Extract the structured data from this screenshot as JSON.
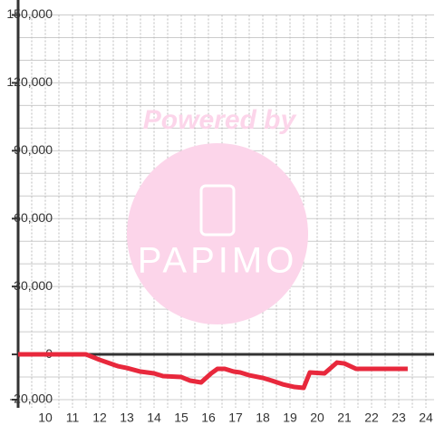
{
  "chart_data": {
    "type": "line",
    "watermark": {
      "top": "Powered by",
      "logo": "PAPIMO"
    },
    "x": [
      9,
      11.5,
      12,
      12.67,
      13,
      13.5,
      14,
      14.33,
      15,
      15.33,
      15.73,
      16.1,
      16.33,
      16.6,
      16.93,
      17.17,
      17.5,
      18,
      18.33,
      18.73,
      19.17,
      19.5,
      19.73,
      20.27,
      20.73,
      21,
      21.43,
      22,
      23.33
    ],
    "series": [
      {
        "color": "#e8283c",
        "values": [
          0,
          0,
          -2400,
          -5200,
          -6000,
          -7600,
          -8400,
          -9600,
          -10000,
          -11600,
          -12400,
          -8400,
          -6400,
          -6400,
          -7600,
          -8000,
          -9200,
          -10400,
          -11600,
          -13200,
          -14400,
          -14800,
          -8000,
          -8400,
          -3600,
          -4000,
          -6400,
          -6400,
          -6400
        ]
      }
    ],
    "xlim": [
      9,
      24.3
    ],
    "xticks": [
      10,
      11,
      12,
      13,
      14,
      15,
      16,
      17,
      18,
      19,
      20,
      21,
      22,
      23,
      24
    ],
    "xminorticks": [
      9.5,
      10.5,
      11.5,
      12.5,
      13.5,
      14.5,
      15.5,
      16.5,
      17.5,
      18.5,
      19.5,
      20.5,
      21.5,
      22.5,
      23.5
    ],
    "ylim": [
      -20000,
      150000
    ],
    "yticks": [
      {
        "value": -20000,
        "label": "-20,000"
      },
      0,
      {
        "value": 30000,
        "label": "30,000"
      },
      {
        "value": 60000,
        "label": "60,000"
      },
      {
        "value": 90000,
        "label": "90,000"
      },
      {
        "value": 120000,
        "label": "120,000"
      },
      {
        "value": 150000,
        "label": "150,000"
      }
    ],
    "yminorticks": [
      -10000,
      10000,
      20000,
      40000,
      50000,
      70000,
      80000,
      100000,
      110000,
      130000,
      140000
    ],
    "grid": true
  }
}
